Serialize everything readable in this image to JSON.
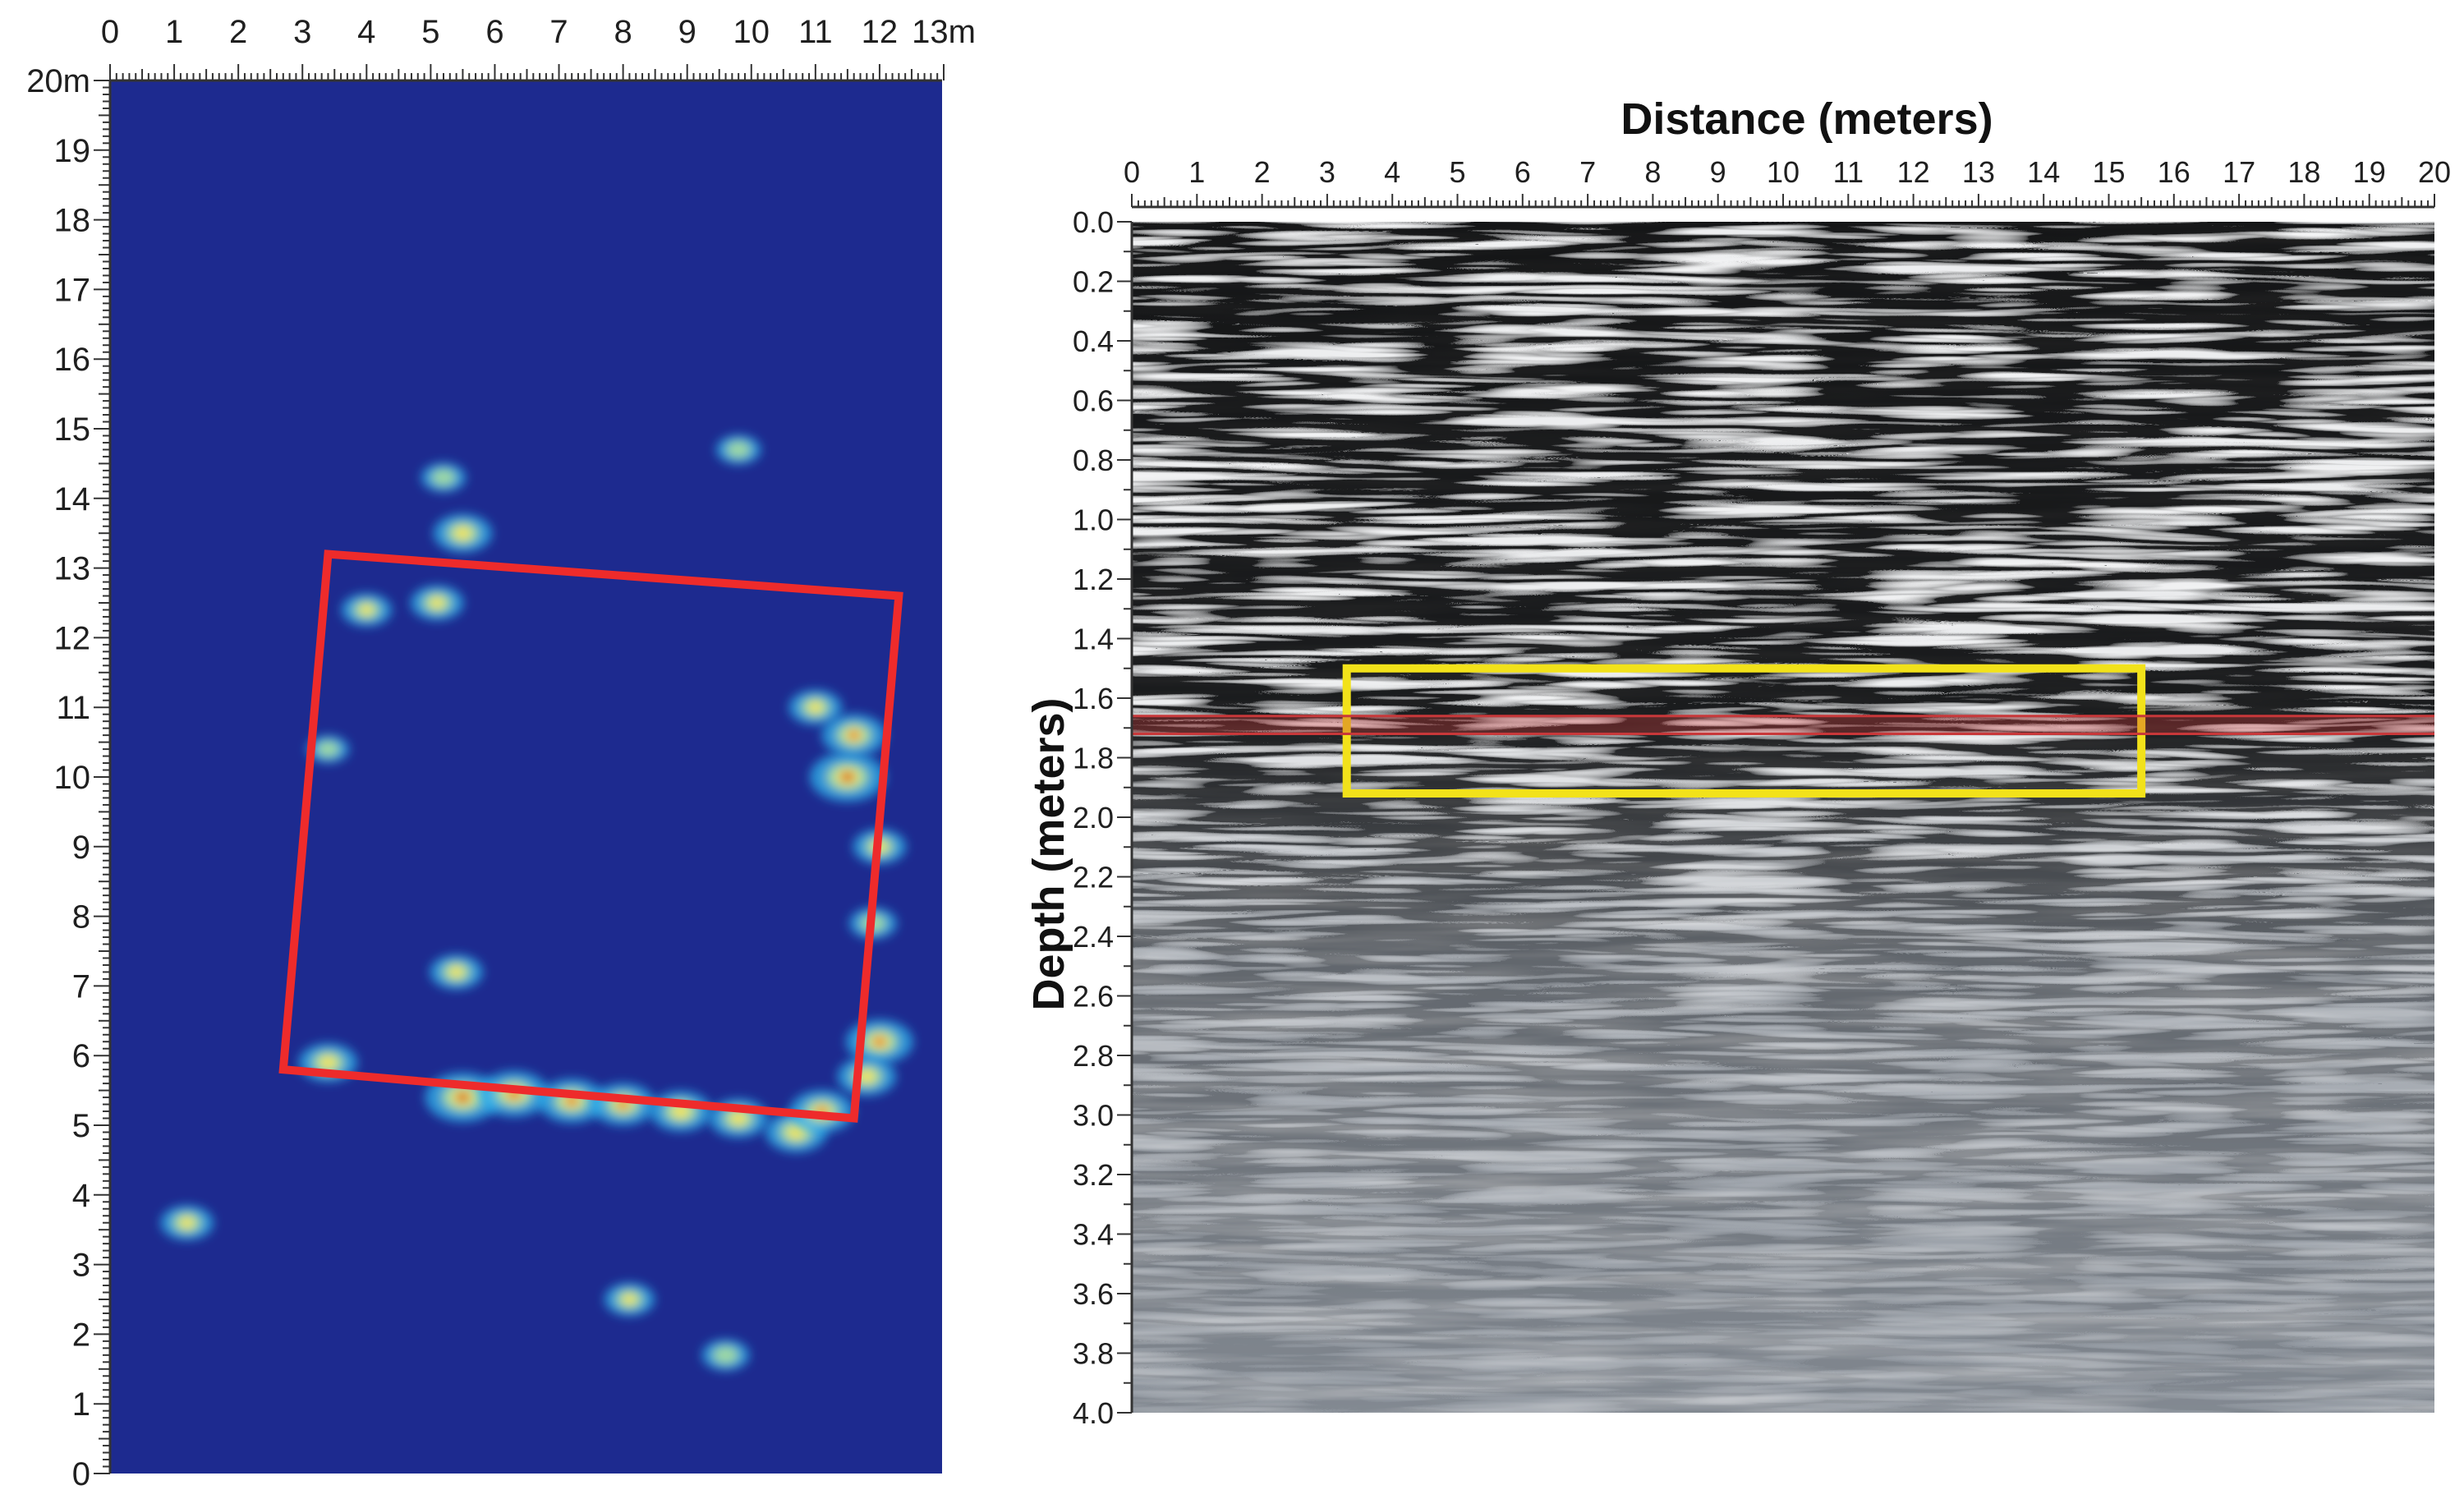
{
  "chart_data": [
    {
      "type": "heatmap",
      "title": "",
      "xlabel": "",
      "ylabel": "",
      "x_unit": "m",
      "y_unit": "m",
      "xlim": [
        0,
        13
      ],
      "ylim": [
        0,
        20
      ],
      "x_ticks": [
        "0",
        "1",
        "2",
        "3",
        "4",
        "5",
        "6",
        "7",
        "8",
        "9",
        "10",
        "11",
        "12",
        "13m"
      ],
      "y_ticks": [
        "0",
        "1",
        "2",
        "3",
        "4",
        "5",
        "6",
        "7",
        "8",
        "9",
        "10",
        "11",
        "12",
        "13",
        "14",
        "15",
        "16",
        "17",
        "18",
        "19",
        "20m"
      ],
      "colorscale": [
        "#1d2a8f",
        "#1f5fd6",
        "#2fb6ee",
        "#a8e0a0",
        "#f3e35a",
        "#e04020",
        "#b01010"
      ],
      "background_color": "#1d2a8f",
      "annotation": {
        "shape": "rotated-rectangle",
        "color": "#ee2b2b",
        "corners": [
          [
            3.4,
            13.2
          ],
          [
            12.3,
            12.6
          ],
          [
            11.6,
            5.1
          ],
          [
            2.7,
            5.8
          ]
        ]
      },
      "hotspots": [
        {
          "x": 5.5,
          "y": 5.4,
          "intensity": 1.0
        },
        {
          "x": 6.3,
          "y": 5.45,
          "intensity": 0.9
        },
        {
          "x": 7.2,
          "y": 5.35,
          "intensity": 0.85
        },
        {
          "x": 8.0,
          "y": 5.3,
          "intensity": 0.8
        },
        {
          "x": 8.9,
          "y": 5.2,
          "intensity": 0.75
        },
        {
          "x": 9.8,
          "y": 5.1,
          "intensity": 0.7
        },
        {
          "x": 10.7,
          "y": 4.9,
          "intensity": 0.75
        },
        {
          "x": 11.1,
          "y": 5.2,
          "intensity": 0.8
        },
        {
          "x": 11.5,
          "y": 10.0,
          "intensity": 1.0
        },
        {
          "x": 11.6,
          "y": 10.6,
          "intensity": 0.8
        },
        {
          "x": 11.0,
          "y": 11.0,
          "intensity": 0.6
        },
        {
          "x": 12.0,
          "y": 9.0,
          "intensity": 0.6
        },
        {
          "x": 12.0,
          "y": 6.2,
          "intensity": 0.85
        },
        {
          "x": 11.8,
          "y": 5.7,
          "intensity": 0.7
        },
        {
          "x": 3.4,
          "y": 5.9,
          "intensity": 0.7
        },
        {
          "x": 4.0,
          "y": 12.4,
          "intensity": 0.55
        },
        {
          "x": 5.1,
          "y": 12.5,
          "intensity": 0.6
        },
        {
          "x": 5.5,
          "y": 13.5,
          "intensity": 0.7
        },
        {
          "x": 5.4,
          "y": 7.2,
          "intensity": 0.6
        },
        {
          "x": 1.2,
          "y": 3.6,
          "intensity": 0.6
        },
        {
          "x": 8.1,
          "y": 2.5,
          "intensity": 0.55
        },
        {
          "x": 9.6,
          "y": 1.7,
          "intensity": 0.5
        },
        {
          "x": 9.8,
          "y": 14.7,
          "intensity": 0.45
        },
        {
          "x": 5.2,
          "y": 14.3,
          "intensity": 0.45
        },
        {
          "x": 3.4,
          "y": 10.4,
          "intensity": 0.4
        },
        {
          "x": 11.9,
          "y": 7.9,
          "intensity": 0.5
        }
      ]
    },
    {
      "type": "heatmap",
      "title": "",
      "xlabel": "Distance (meters)",
      "ylabel": "Depth (meters)",
      "xlim": [
        0,
        20
      ],
      "ylim": [
        4.0,
        0.0
      ],
      "x_ticks": [
        "0",
        "1",
        "2",
        "3",
        "4",
        "5",
        "6",
        "7",
        "8",
        "9",
        "10",
        "11",
        "12",
        "13",
        "14",
        "15",
        "16",
        "17",
        "18",
        "19",
        "20"
      ],
      "y_ticks": [
        "0.0",
        "0.2",
        "0.4",
        "0.6",
        "0.8",
        "1.0",
        "1.2",
        "1.4",
        "1.6",
        "1.8",
        "2.0",
        "2.2",
        "2.4",
        "2.6",
        "2.8",
        "3.0",
        "3.2",
        "3.4",
        "3.6",
        "3.8",
        "4.0"
      ],
      "colorscale": [
        "#0a0a0a",
        "#8e949c",
        "#f5f5f5"
      ],
      "annotations": [
        {
          "shape": "rectangle",
          "color": "#f2e21a",
          "x": [
            3.3,
            15.5
          ],
          "depth": [
            1.5,
            1.92
          ]
        },
        {
          "shape": "horizontal-band",
          "color": "#c8383a",
          "depth": [
            1.66,
            1.72
          ]
        }
      ]
    }
  ]
}
